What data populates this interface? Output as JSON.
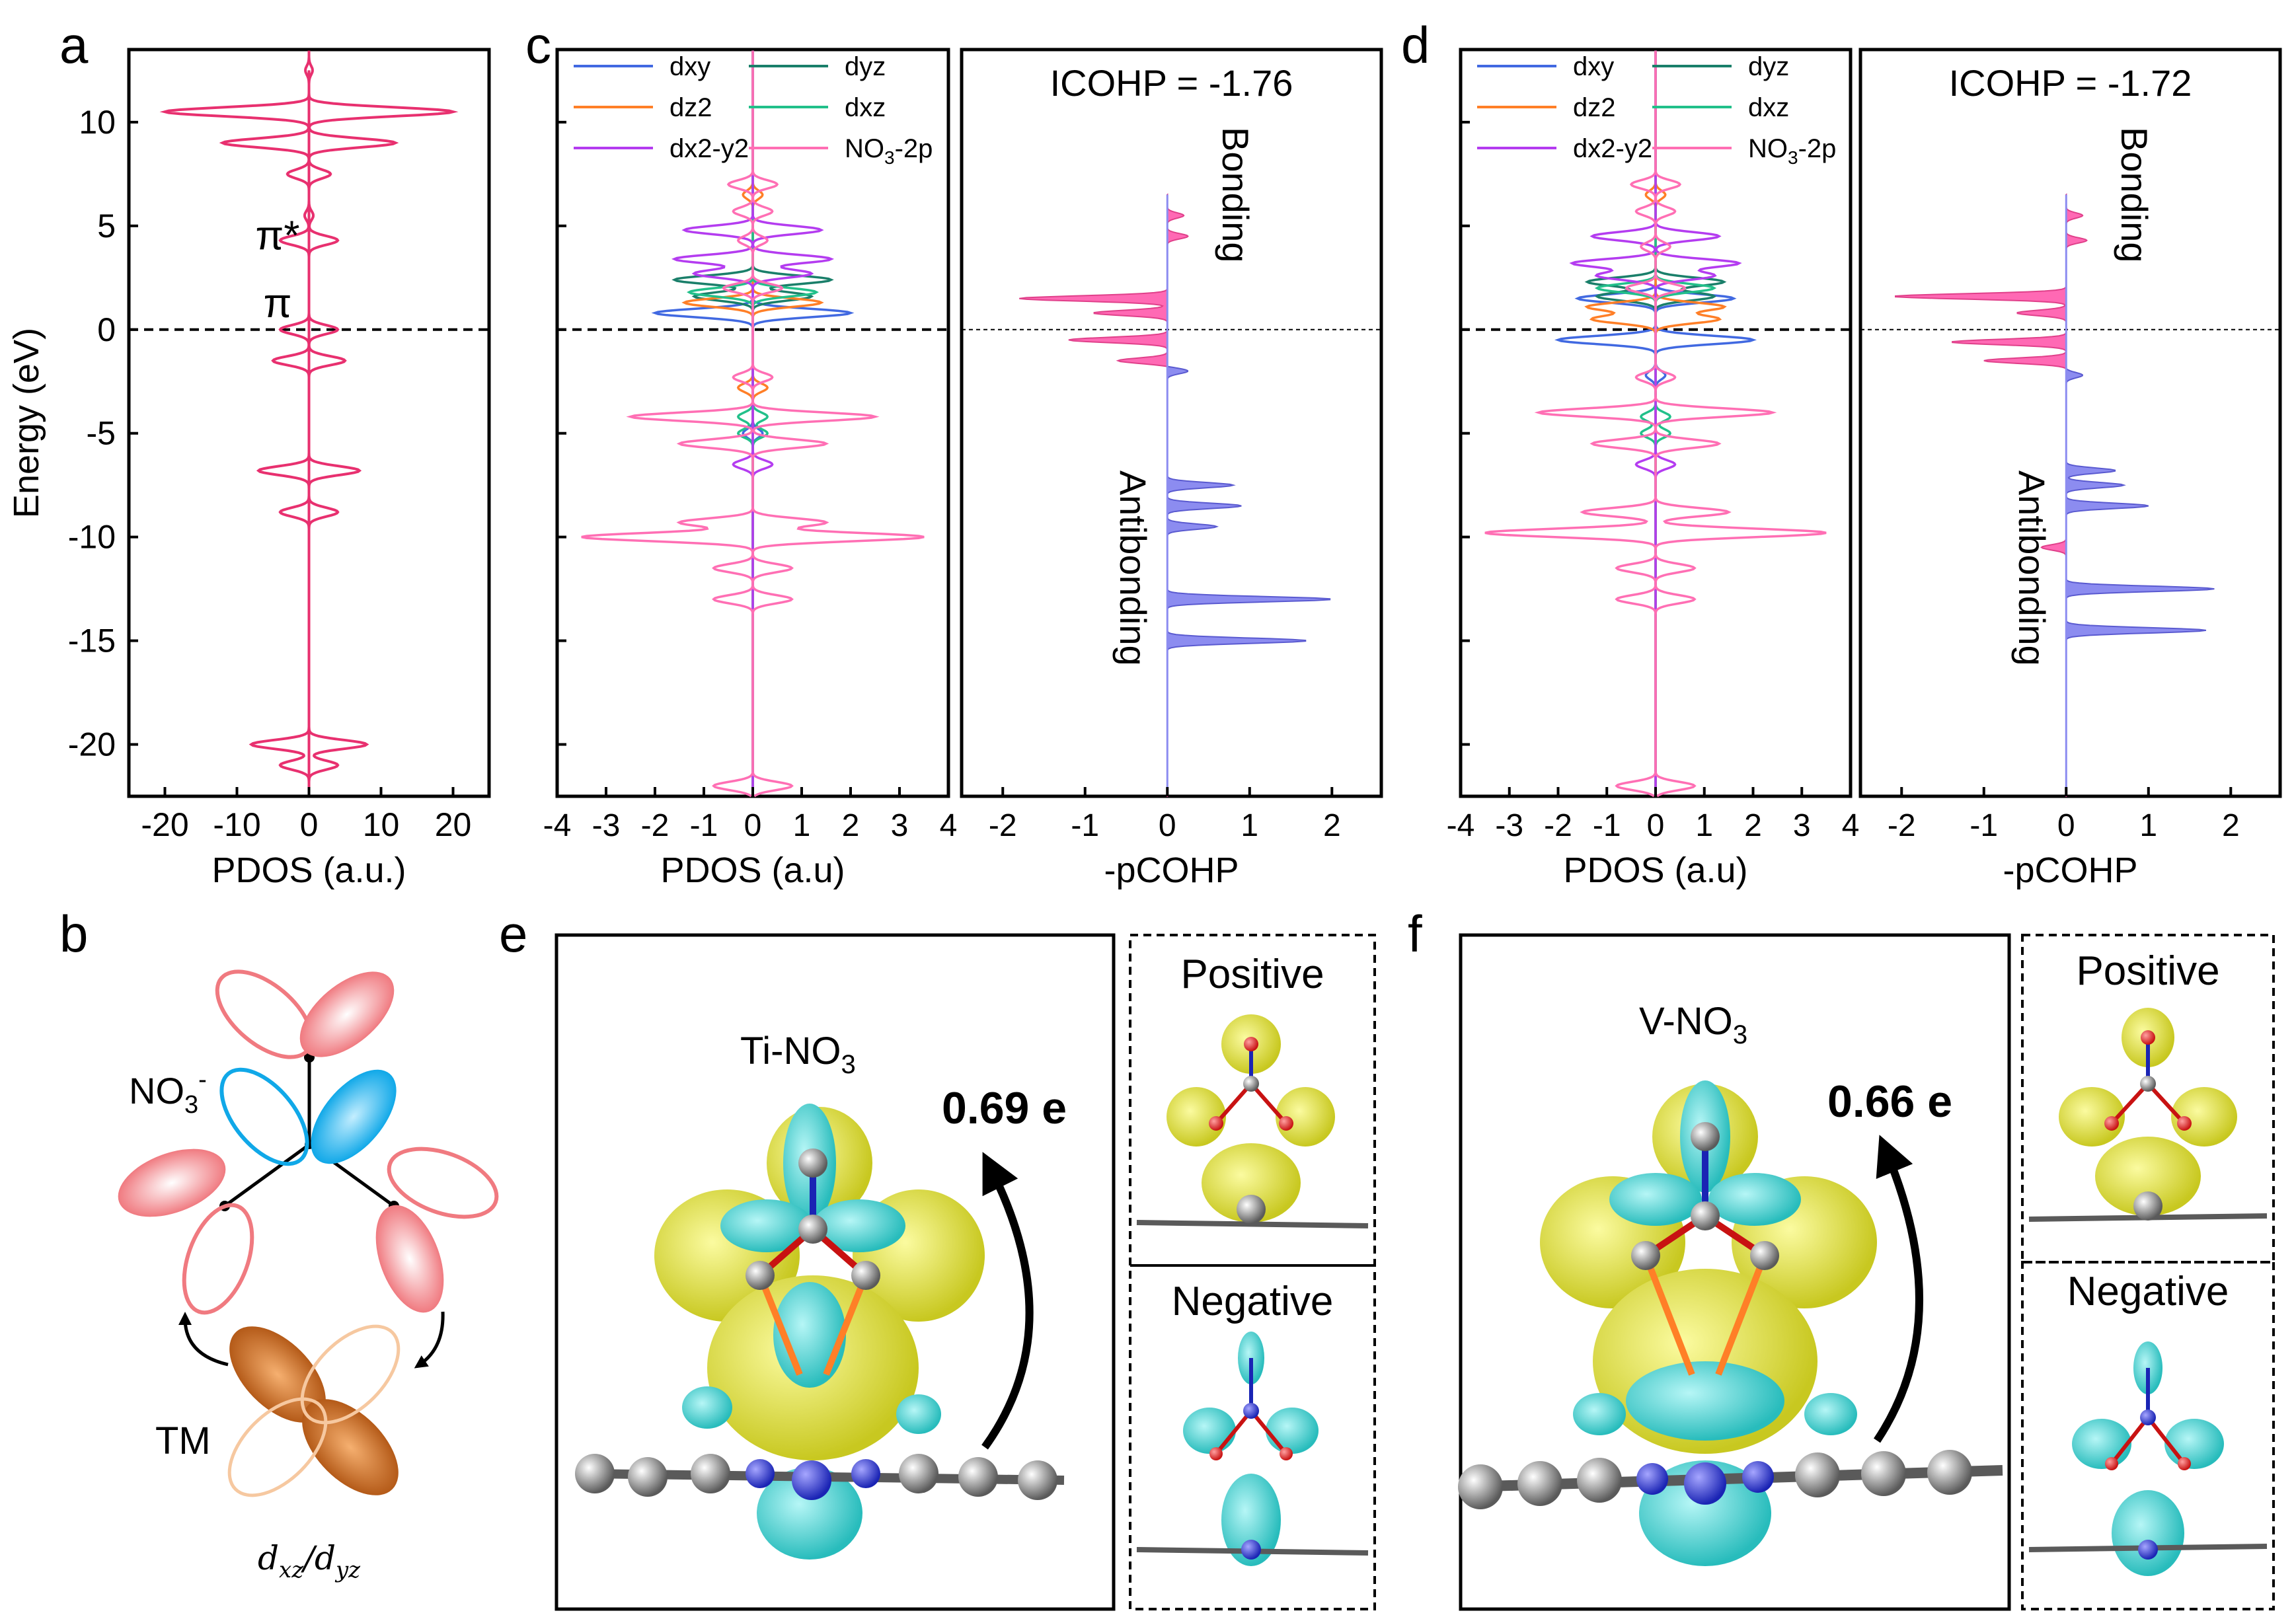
{
  "panel_letters": {
    "a": "a",
    "b": "b",
    "c": "c",
    "d": "d",
    "e": "e",
    "f": "f"
  },
  "colors": {
    "dxy": "#4169e1",
    "dyz": "#1a7f6a",
    "dz2": "#ff7f27",
    "dxz": "#22c08a",
    "dx2y2": "#b43cf0",
    "no3": "#ff6fb4",
    "panel_a": "#e8306f",
    "bonding_fill": "#ff69b4",
    "antibonding_fill": "#8c8cf0",
    "yellow_lobe": "#e8e84a",
    "cyan_lobe": "#50d6d6"
  },
  "chart_data": [
    {
      "panel": "a",
      "type": "line",
      "xlabel": "PDOS (a.u.)",
      "ylabel": "Energy (eV)",
      "xlim": [
        -25,
        25
      ],
      "ylim": [
        -22.5,
        13.5
      ],
      "xticks": [
        "-20",
        "-10",
        "0",
        "10",
        "20"
      ],
      "yticks": [
        "10",
        "5",
        "0",
        "-5",
        "-10",
        "-15",
        "-20"
      ],
      "annotations": [
        "π*",
        "π"
      ],
      "fermi_level": 0,
      "series": [
        {
          "color": "#e8306f",
          "peaks": [
            [
              12.5,
              0.5
            ],
            [
              10.5,
              20
            ],
            [
              9,
              12
            ],
            [
              7.5,
              3
            ],
            [
              5.5,
              0.6
            ],
            [
              4.3,
              4
            ],
            [
              0,
              4
            ],
            [
              -1.5,
              5
            ],
            [
              -6.8,
              7
            ],
            [
              -8.8,
              4
            ],
            [
              -20,
              8
            ],
            [
              -21,
              4
            ]
          ]
        }
      ]
    },
    {
      "panel": "c",
      "type": "line",
      "xlabel": "PDOS (a.u)",
      "xlim": [
        -4,
        4
      ],
      "ylim": [
        -22.5,
        13.5
      ],
      "xticks": [
        "-4",
        "-3",
        "-2",
        "-1",
        "0",
        "1",
        "2",
        "3",
        "4"
      ],
      "fermi_level": 0,
      "legend": {
        "placement": "top",
        "entries": [
          "dxy",
          "dyz",
          "dz2",
          "dxz",
          "dx2-y2",
          "NO3-2p"
        ]
      },
      "series": [
        {
          "name": "dxy",
          "color": "#4169e1",
          "peaks": [
            [
              0.8,
              2
            ],
            [
              -5,
              0.2
            ]
          ]
        },
        {
          "name": "dyz",
          "color": "#1a7f6a",
          "peaks": [
            [
              2.4,
              1.6
            ],
            [
              1.6,
              1.2
            ]
          ]
        },
        {
          "name": "dz2",
          "color": "#ff7f27",
          "peaks": [
            [
              1.3,
              1.4
            ],
            [
              -2.8,
              0.3
            ],
            [
              6.5,
              0.2
            ]
          ]
        },
        {
          "name": "dxz",
          "color": "#22c08a",
          "peaks": [
            [
              1.8,
              1.3
            ],
            [
              -5,
              0.3
            ],
            [
              -4.2,
              0.3
            ]
          ]
        },
        {
          "name": "dx2-y2",
          "color": "#b43cf0",
          "peaks": [
            [
              4.8,
              1.4
            ],
            [
              3.4,
              1.6
            ],
            [
              2.7,
              1.2
            ],
            [
              -6.5,
              0.4
            ]
          ]
        },
        {
          "name": "NO3-2p",
          "color": "#ff6fb4",
          "peaks": [
            [
              7,
              0.5
            ],
            [
              5.7,
              0.4
            ],
            [
              4.3,
              0.3
            ],
            [
              2,
              0.6
            ],
            [
              -2.3,
              0.4
            ],
            [
              -4.2,
              2.5
            ],
            [
              -5.5,
              1.5
            ],
            [
              -9.3,
              1.5
            ],
            [
              -10,
              3.5
            ],
            [
              -11.5,
              0.8
            ],
            [
              -13,
              0.8
            ],
            [
              -22,
              0.8
            ]
          ]
        }
      ]
    },
    {
      "panel": "c",
      "type": "area",
      "xlabel": "-pCOHP",
      "xlim": [
        -2.5,
        2.6
      ],
      "ylim": [
        -22.5,
        13.5
      ],
      "xticks": [
        "-2",
        "-1",
        "0",
        "1",
        "2"
      ],
      "title": "ICOHP = -1.76",
      "annotations": [
        "Bonding",
        "Antibonding"
      ],
      "peaks": [
        [
          5.5,
          0.2
        ],
        [
          4.5,
          0.25
        ],
        [
          1.5,
          -1.8
        ],
        [
          0.8,
          -0.9
        ],
        [
          -0.5,
          -1.2
        ],
        [
          -1.5,
          -0.6
        ],
        [
          -2,
          0.25
        ],
        [
          -7.5,
          0.8
        ],
        [
          -8.5,
          0.9
        ],
        [
          -9.5,
          0.6
        ],
        [
          -13,
          2
        ],
        [
          -15,
          1.7
        ]
      ]
    },
    {
      "panel": "d",
      "type": "line",
      "xlabel": "PDOS (a.u)",
      "xlim": [
        -4,
        4
      ],
      "ylim": [
        -22.5,
        13.5
      ],
      "xticks": [
        "-4",
        "-3",
        "-2",
        "-1",
        "0",
        "1",
        "2",
        "3",
        "4"
      ],
      "fermi_level": 0,
      "legend": {
        "placement": "top",
        "entries": [
          "dxy",
          "dyz",
          "dz2",
          "dxz",
          "dx2-y2",
          "NO3-2p"
        ]
      },
      "series": [
        {
          "name": "dxy",
          "color": "#4169e1",
          "peaks": [
            [
              1.5,
              1.6
            ],
            [
              -0.5,
              2
            ],
            [
              -2.2,
              0.2
            ]
          ]
        },
        {
          "name": "dyz",
          "color": "#1a7f6a",
          "peaks": [
            [
              2.3,
              1.4
            ],
            [
              1.6,
              1.2
            ]
          ]
        },
        {
          "name": "dz2",
          "color": "#ff7f27",
          "peaks": [
            [
              1.1,
              1.4
            ],
            [
              0.5,
              1.3
            ],
            [
              6.5,
              0.2
            ]
          ]
        },
        {
          "name": "dxz",
          "color": "#22c08a",
          "peaks": [
            [
              2,
              1.2
            ],
            [
              -5,
              0.3
            ],
            [
              -4.2,
              0.3
            ]
          ]
        },
        {
          "name": "dx2-y2",
          "color": "#b43cf0",
          "peaks": [
            [
              4.5,
              1.3
            ],
            [
              3.2,
              1.7
            ],
            [
              2.6,
              1.2
            ],
            [
              -6.5,
              0.4
            ]
          ]
        },
        {
          "name": "NO3-2p",
          "color": "#ff6fb4",
          "peaks": [
            [
              7,
              0.5
            ],
            [
              5.7,
              0.4
            ],
            [
              4,
              0.3
            ],
            [
              2,
              0.6
            ],
            [
              -2.3,
              0.4
            ],
            [
              -4,
              2.4
            ],
            [
              -5.5,
              1.3
            ],
            [
              -8.8,
              1.5
            ],
            [
              -9.8,
              3.5
            ],
            [
              -11.5,
              0.8
            ],
            [
              -13,
              0.8
            ],
            [
              -22,
              0.8
            ]
          ]
        }
      ]
    },
    {
      "panel": "d",
      "type": "area",
      "xlabel": "-pCOHP",
      "xlim": [
        -2.5,
        2.6
      ],
      "ylim": [
        -22.5,
        13.5
      ],
      "xticks": [
        "-2",
        "-1",
        "0",
        "1",
        "2"
      ],
      "title": "ICOHP = -1.72",
      "annotations": [
        "Bonding",
        "Antibonding"
      ],
      "peaks": [
        [
          5.5,
          0.2
        ],
        [
          4.3,
          0.25
        ],
        [
          1.6,
          -2.1
        ],
        [
          0.8,
          -0.6
        ],
        [
          -0.6,
          -1.4
        ],
        [
          -1.5,
          -1.0
        ],
        [
          -2.2,
          0.2
        ],
        [
          -6.8,
          0.6
        ],
        [
          -7.5,
          0.7
        ],
        [
          -8.5,
          1.0
        ],
        [
          -10.5,
          -0.3
        ],
        [
          -12.5,
          1.8
        ],
        [
          -14.5,
          1.7
        ]
      ]
    }
  ],
  "panel_b": {
    "label_no3": "NO₃⁻",
    "label_tm": "TM",
    "label_orb": "dxz/dyz",
    "sup": "-",
    "sub": "3"
  },
  "panel_e": {
    "title": "Ti-NO",
    "sub": "3",
    "charge": "0.69 e",
    "positive": "Positive",
    "negative": "Negative"
  },
  "panel_f": {
    "title": "V-NO",
    "sub": "3",
    "charge": "0.66 e",
    "positive": "Positive",
    "negative": "Negative"
  }
}
